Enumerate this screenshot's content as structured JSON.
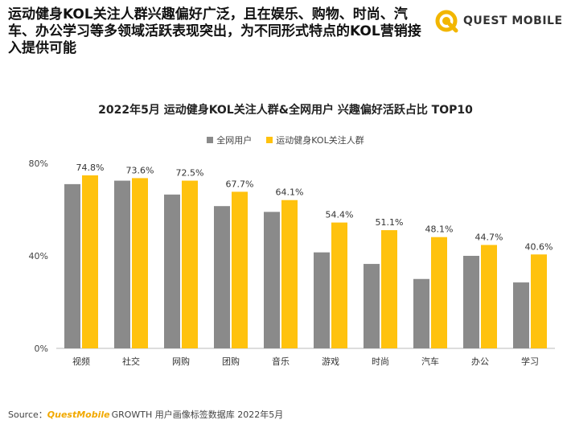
{
  "header": {
    "headline": "运动健身KOL关注人群兴趣偏好广泛，且在娱乐、购物、时尚、汽车、办公学习等多领域活跃表现突出，为不同形式特点的KOL营销接入提供可能",
    "brand": "QUEST MOBILE"
  },
  "footer": {
    "source_label": "Source：",
    "source_brand": "QuestMobile",
    "source_rest": "GROWTH 用户画像标签数据库 2022年5月"
  },
  "colors": {
    "all_users": "#8a8a8a",
    "kol_followers": "#ffc20e",
    "brand_accent": "#f2b600"
  },
  "icons": {
    "brand_logo": "questmobile-logo-icon"
  },
  "chart_data": {
    "type": "bar",
    "title": "2022年5月 运动健身KOL关注人群&全网用户 兴趣偏好活跃占比 TOP10",
    "categories": [
      "视频",
      "社交",
      "网购",
      "团购",
      "音乐",
      "游戏",
      "时尚",
      "汽车",
      "办公",
      "学习"
    ],
    "series": [
      {
        "name": "全网用户",
        "values": [
          71,
          72.5,
          66.5,
          61.5,
          59,
          41.5,
          36.5,
          30,
          40,
          28.5
        ]
      },
      {
        "name": "运动健身KOL关注人群",
        "values": [
          74.8,
          73.6,
          72.5,
          67.7,
          64.1,
          54.4,
          51.1,
          48.1,
          44.7,
          40.6
        ]
      }
    ],
    "data_labels": [
      "74.8%",
      "73.6%",
      "72.5%",
      "67.7%",
      "64.1%",
      "54.4%",
      "51.1%",
      "48.1%",
      "44.7%",
      "40.6%"
    ],
    "yticks": [
      "0%",
      "40%",
      "80%"
    ],
    "ylim": [
      0,
      80
    ],
    "legend_position": "top-center",
    "grid": false
  }
}
